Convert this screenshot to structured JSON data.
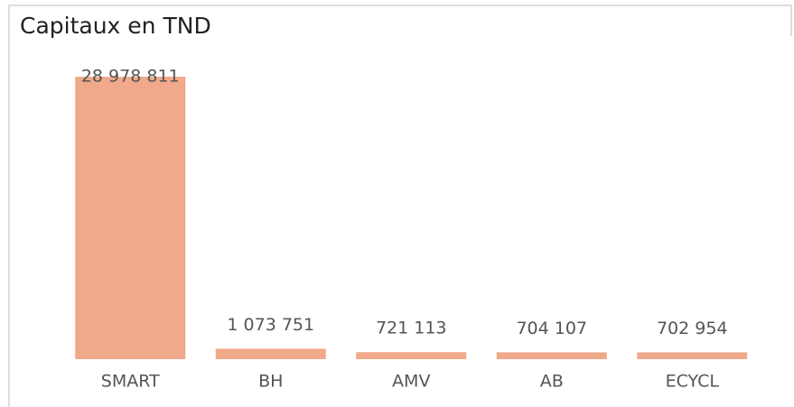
{
  "chart_data": {
    "type": "bar",
    "title": "Capitaux en TND",
    "categories": [
      "SMART",
      "BH",
      "AMV",
      "AB",
      "ECYCL"
    ],
    "values": [
      28978811,
      1073751,
      721113,
      704107,
      702954
    ],
    "value_labels": [
      "28 978 811",
      "1 073 751",
      "721 113",
      "704 107",
      "702 954"
    ],
    "color": "#f0a98a"
  }
}
